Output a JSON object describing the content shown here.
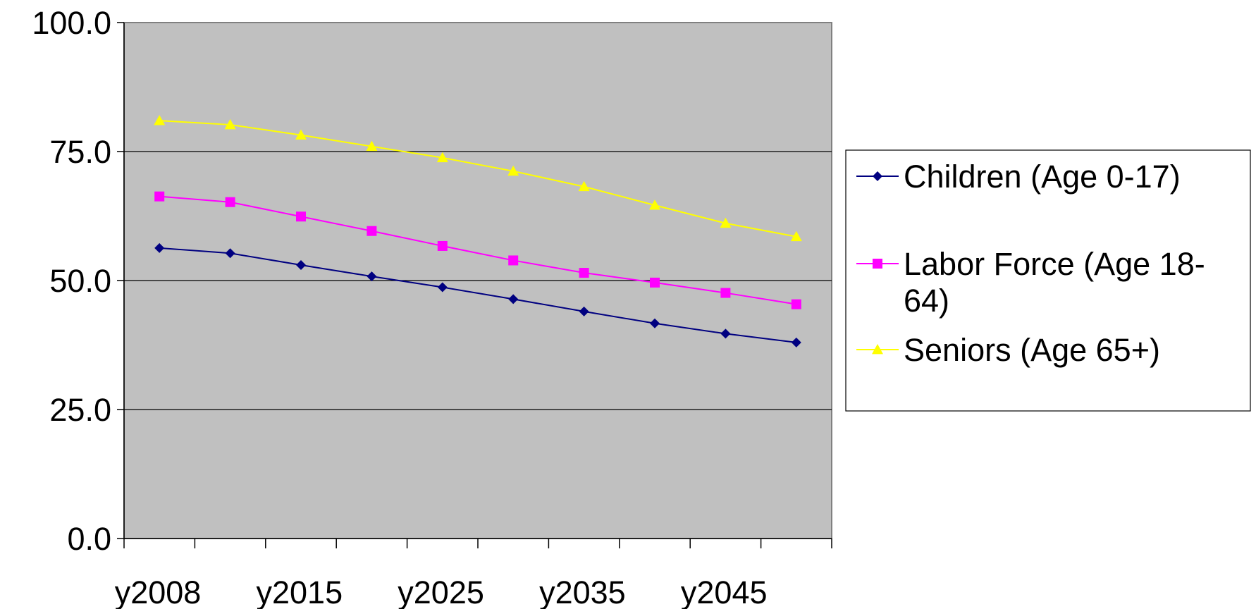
{
  "chart_data": {
    "type": "line",
    "title": "",
    "xlabel": "",
    "ylabel": "",
    "ylim": [
      0,
      100
    ],
    "y_ticks": [
      "0.0",
      "25.0",
      "50.0",
      "75.0",
      "100.0"
    ],
    "x_tick_labels": [
      "y2008",
      "y2015",
      "y2025",
      "y2035",
      "y2045"
    ],
    "x_positions": 10,
    "grid": "horizontal",
    "plot_background": "#C0C0C0",
    "legend_position": "right",
    "series": [
      {
        "name": "Children (Age 0-17)",
        "color": "#000080",
        "marker": "diamond",
        "values": [
          56.3,
          55.3,
          53.0,
          50.8,
          48.7,
          46.4,
          44.0,
          41.7,
          39.7,
          38.0
        ]
      },
      {
        "name": "Labor Force (Age 18-64)",
        "color": "#FF00FF",
        "marker": "square",
        "values": [
          66.3,
          65.2,
          62.4,
          59.6,
          56.7,
          53.9,
          51.5,
          49.6,
          47.6,
          45.4
        ]
      },
      {
        "name": "Seniors (Age 65+)",
        "color": "#FFFF00",
        "marker": "triangle",
        "values": [
          81.0,
          80.2,
          78.2,
          76.0,
          73.8,
          71.2,
          68.2,
          64.6,
          61.1,
          58.5
        ]
      }
    ]
  },
  "legend": {
    "items": [
      {
        "lines": [
          "Children (Age 0-17)"
        ]
      },
      {
        "lines": [
          "Labor Force (Age 18-",
          "64)"
        ]
      },
      {
        "lines": [
          "Seniors (Age 65+)"
        ]
      }
    ]
  }
}
